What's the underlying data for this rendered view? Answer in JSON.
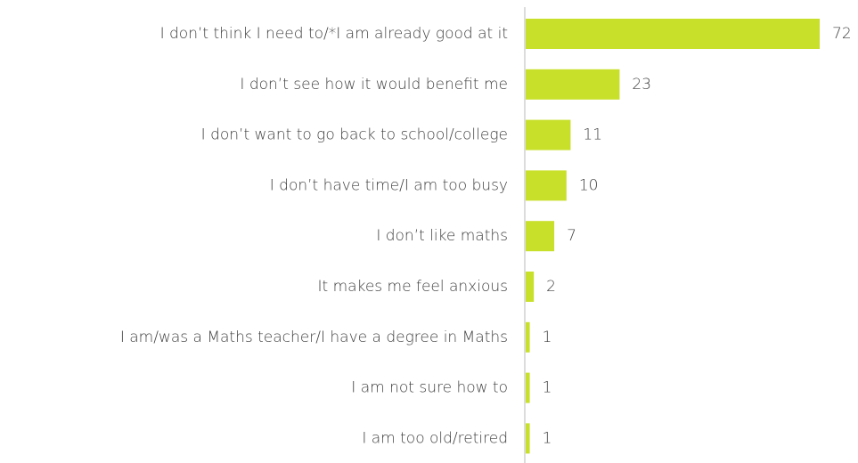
{
  "chart_data": {
    "type": "bar",
    "orientation": "horizontal",
    "categories": [
      "I don’t think I need to/*I am already good at it",
      "I don’t see how it would benefit me",
      "I don’t want to go back to school/college",
      "I don’t have time/I am too busy",
      "I don’t like maths",
      "It makes me feel anxious",
      "I am/was a Maths teacher/I have a degree in Maths",
      "I am not sure how to",
      "I am too old/retired"
    ],
    "values": [
      72,
      23,
      11,
      10,
      7,
      2,
      1,
      1,
      1
    ],
    "color": "#c8e02a"
  }
}
